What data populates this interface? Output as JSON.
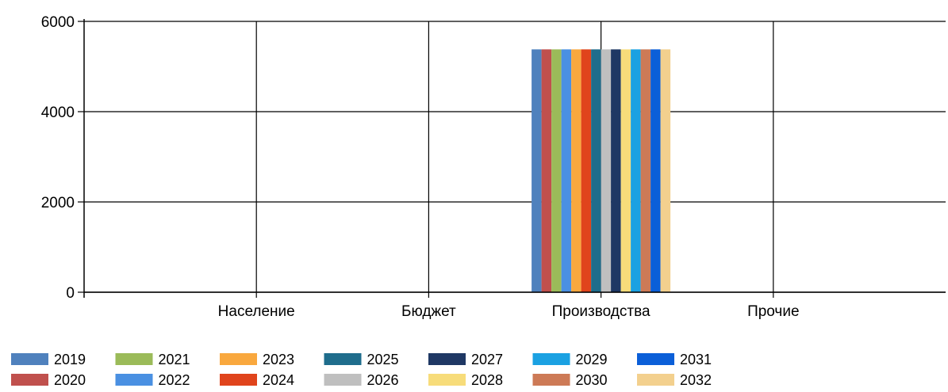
{
  "chart_data": {
    "type": "bar",
    "title": "",
    "xlabel": "",
    "ylabel": "",
    "ylim": [
      0,
      6000
    ],
    "yticks": [
      0,
      2000,
      4000,
      6000
    ],
    "grid": true,
    "legend_position": "bottom",
    "categories": [
      "Население",
      "Бюджет",
      "Производства",
      "Прочие"
    ],
    "series": [
      {
        "name": "2019",
        "color": "#4f81bd",
        "values": [
          0,
          0,
          5380,
          0
        ]
      },
      {
        "name": "2020",
        "color": "#c0504d",
        "values": [
          0,
          0,
          5380,
          0
        ]
      },
      {
        "name": "2021",
        "color": "#9bbb59",
        "values": [
          0,
          0,
          5380,
          0
        ]
      },
      {
        "name": "2022",
        "color": "#4a90e2",
        "values": [
          0,
          0,
          5380,
          0
        ]
      },
      {
        "name": "2023",
        "color": "#f9a83e",
        "values": [
          0,
          0,
          5380,
          0
        ]
      },
      {
        "name": "2024",
        "color": "#e0441c",
        "values": [
          0,
          0,
          5380,
          0
        ]
      },
      {
        "name": "2025",
        "color": "#1f6d8c",
        "values": [
          0,
          0,
          5380,
          0
        ]
      },
      {
        "name": "2026",
        "color": "#bfbfbf",
        "values": [
          0,
          0,
          5380,
          0
        ]
      },
      {
        "name": "2027",
        "color": "#1f3864",
        "values": [
          0,
          0,
          5380,
          0
        ]
      },
      {
        "name": "2028",
        "color": "#f7dc7a",
        "values": [
          0,
          0,
          5380,
          0
        ]
      },
      {
        "name": "2029",
        "color": "#1ba1e2",
        "values": [
          0,
          0,
          5380,
          0
        ]
      },
      {
        "name": "2030",
        "color": "#cd7a56",
        "values": [
          0,
          0,
          5380,
          0
        ]
      },
      {
        "name": "2031",
        "color": "#0b5fd8",
        "values": [
          0,
          0,
          5380,
          0
        ]
      },
      {
        "name": "2032",
        "color": "#f3d08e",
        "values": [
          0,
          0,
          5380,
          0
        ]
      }
    ]
  }
}
